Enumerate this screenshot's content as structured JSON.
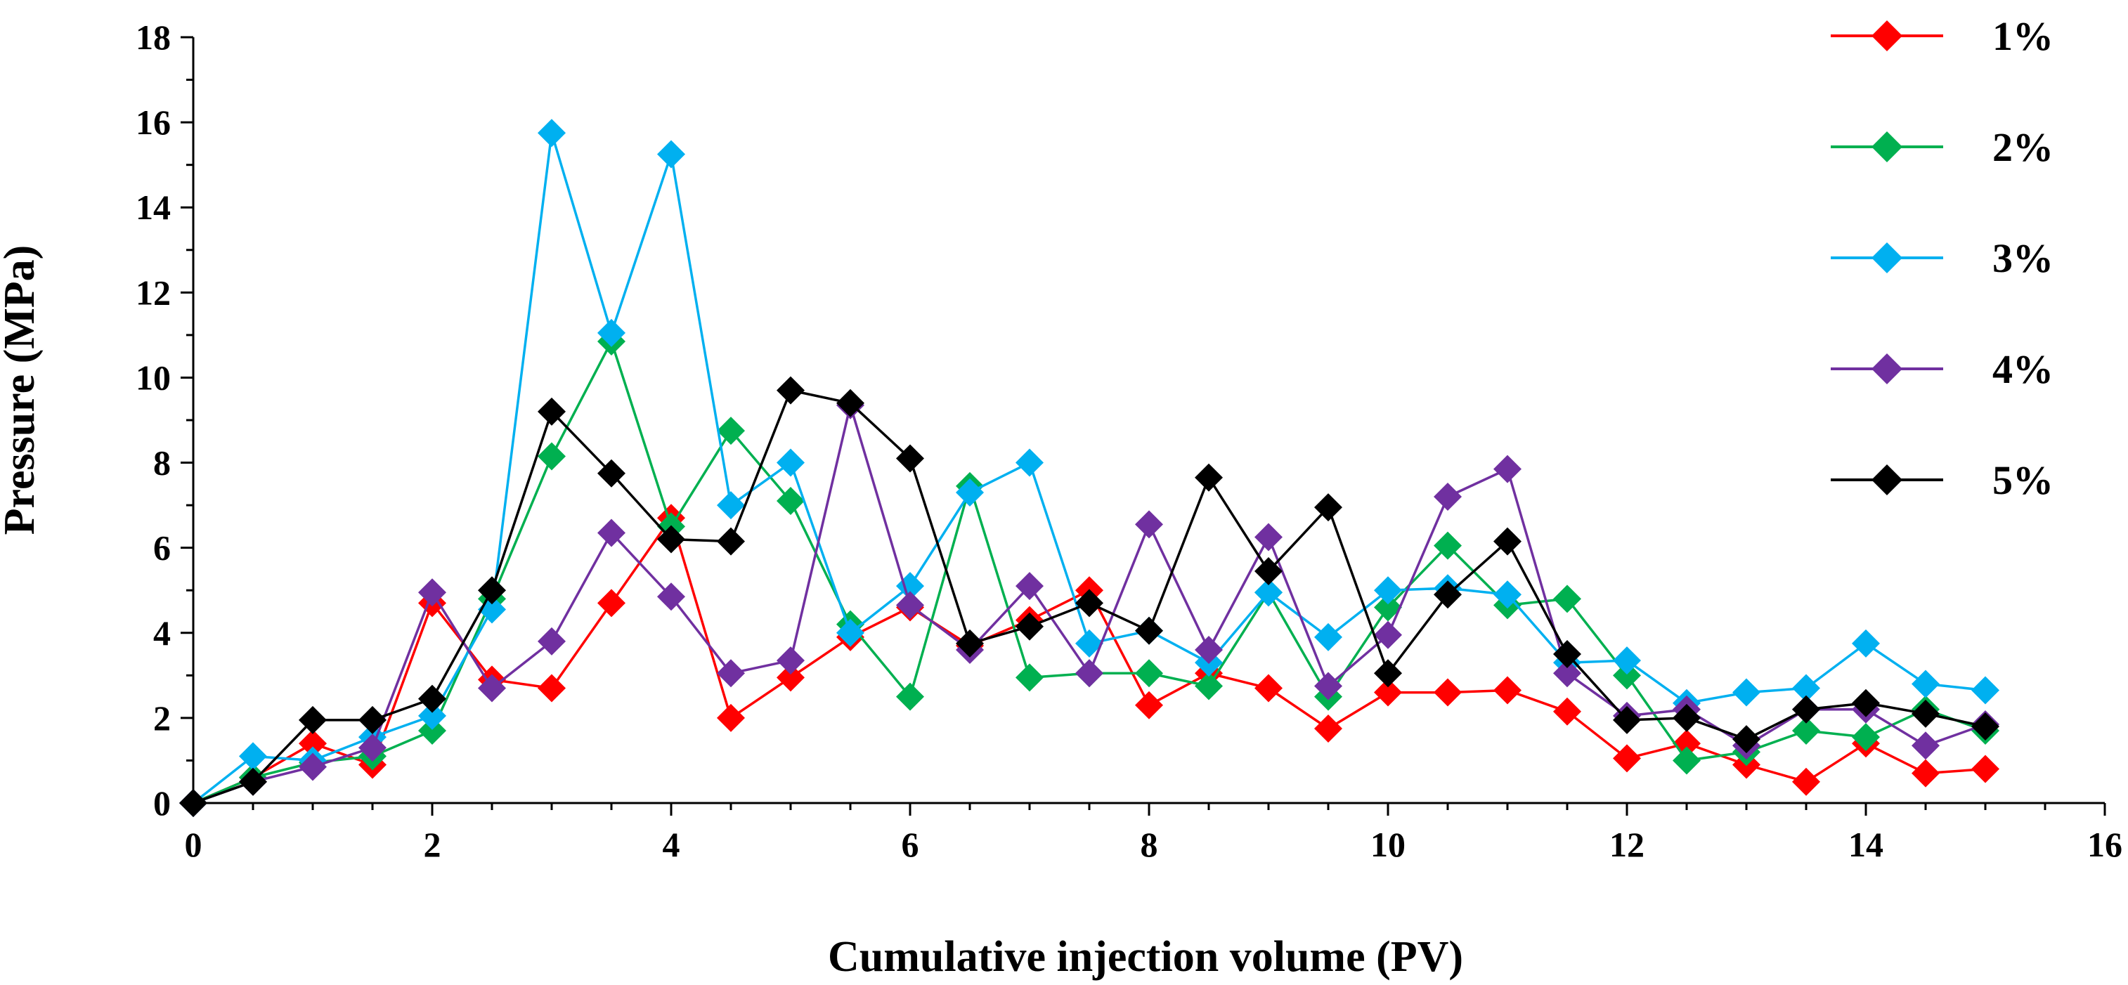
{
  "chart_data": {
    "type": "line",
    "title": "",
    "xlabel": "Cumulative injection volume (PV)",
    "ylabel": "Pressure (MPa)",
    "xlim": [
      0,
      16
    ],
    "ylim": [
      0,
      18
    ],
    "xticks": [
      0,
      2,
      4,
      6,
      8,
      10,
      12,
      14,
      16
    ],
    "yticks": [
      0,
      2,
      4,
      6,
      8,
      10,
      12,
      14,
      16,
      18
    ],
    "grid": false,
    "legend_position": "right",
    "marker": "diamond",
    "x": [
      0,
      0.5,
      1,
      1.5,
      2,
      2.5,
      3,
      3.5,
      4,
      4.5,
      5,
      5.5,
      6,
      6.5,
      7,
      7.5,
      8,
      8.5,
      9,
      9.5,
      10,
      10.5,
      11,
      11.5,
      12,
      12.5,
      13,
      13.5,
      14,
      14.5,
      15
    ],
    "series": [
      {
        "name": "1%",
        "color": "#ff0000",
        "values": [
          0,
          0.6,
          1.4,
          0.9,
          4.7,
          2.9,
          2.7,
          4.7,
          6.7,
          2.0,
          2.95,
          3.9,
          4.6,
          3.7,
          4.3,
          5.0,
          2.3,
          3.05,
          2.7,
          1.75,
          2.6,
          2.6,
          2.65,
          2.15,
          1.05,
          1.4,
          0.9,
          0.5,
          1.4,
          0.7,
          0.8
        ]
      },
      {
        "name": "2%",
        "color": "#00b050",
        "values": [
          0,
          0.6,
          0.95,
          1.1,
          1.7,
          4.8,
          8.15,
          10.85,
          6.5,
          8.75,
          7.1,
          4.2,
          2.5,
          7.45,
          2.95,
          3.05,
          3.05,
          2.75,
          4.95,
          2.5,
          4.6,
          6.05,
          4.65,
          4.8,
          3.0,
          1.0,
          1.2,
          1.7,
          1.55,
          2.2,
          1.7
        ]
      },
      {
        "name": "3%",
        "color": "#00b0f0",
        "values": [
          0,
          1.1,
          1.0,
          1.55,
          2.05,
          4.55,
          15.75,
          11.05,
          15.25,
          7.0,
          8.0,
          4.0,
          5.1,
          7.3,
          8.0,
          3.75,
          4.05,
          3.3,
          4.95,
          3.9,
          5.0,
          5.05,
          4.9,
          3.3,
          3.35,
          2.35,
          2.6,
          2.7,
          3.75,
          2.8,
          2.65
        ]
      },
      {
        "name": "4%",
        "color": "#7030a0",
        "values": [
          0,
          0.5,
          0.85,
          1.3,
          4.95,
          2.7,
          3.8,
          6.35,
          4.85,
          3.05,
          3.35,
          9.35,
          4.65,
          3.6,
          5.1,
          3.05,
          6.55,
          3.6,
          6.25,
          2.75,
          3.95,
          7.2,
          7.85,
          3.05,
          2.05,
          2.2,
          1.35,
          2.2,
          2.2,
          1.35,
          1.85
        ]
      },
      {
        "name": "5%",
        "color": "#000000",
        "values": [
          0,
          0.5,
          1.95,
          1.95,
          2.45,
          5.0,
          9.2,
          7.75,
          6.2,
          6.15,
          9.7,
          9.4,
          8.1,
          3.75,
          4.15,
          4.7,
          4.05,
          7.65,
          5.45,
          6.95,
          3.05,
          4.9,
          6.15,
          3.5,
          1.95,
          2.0,
          1.5,
          2.2,
          2.35,
          2.1,
          1.8
        ]
      }
    ]
  }
}
